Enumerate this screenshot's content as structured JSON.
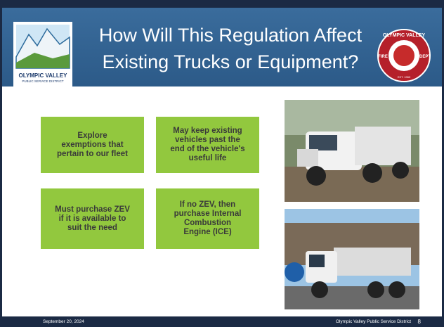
{
  "header": {
    "title_lines": [
      "How Will This Regulation Affect",
      "Existing Trucks or Equipment?"
    ],
    "left_logo": {
      "line1": "OLYMPIC VALLEY",
      "line2": "PUBLIC SERVICE DISTRICT"
    },
    "right_logo": {
      "top": "OLYMPIC VALLEY",
      "left": "FIRE",
      "right": "DEPT",
      "bottom": "EST. 1960"
    }
  },
  "boxes": [
    {
      "lines": [
        "Explore",
        "exemptions that",
        "pertain to our fleet"
      ]
    },
    {
      "lines": [
        "May keep existing",
        "vehicles past the",
        "end of the vehicle's",
        "useful life"
      ]
    },
    {
      "lines": [
        "Must purchase ZEV",
        "if it is available to",
        "suit the need"
      ]
    },
    {
      "lines": [
        "If no ZEV, then",
        "purchase Internal",
        "Combustion",
        "Engine (ICE)"
      ]
    }
  ],
  "footer": {
    "date": "September 20, 2024",
    "org": "Olympic Valley Public Service District",
    "page": 8
  }
}
